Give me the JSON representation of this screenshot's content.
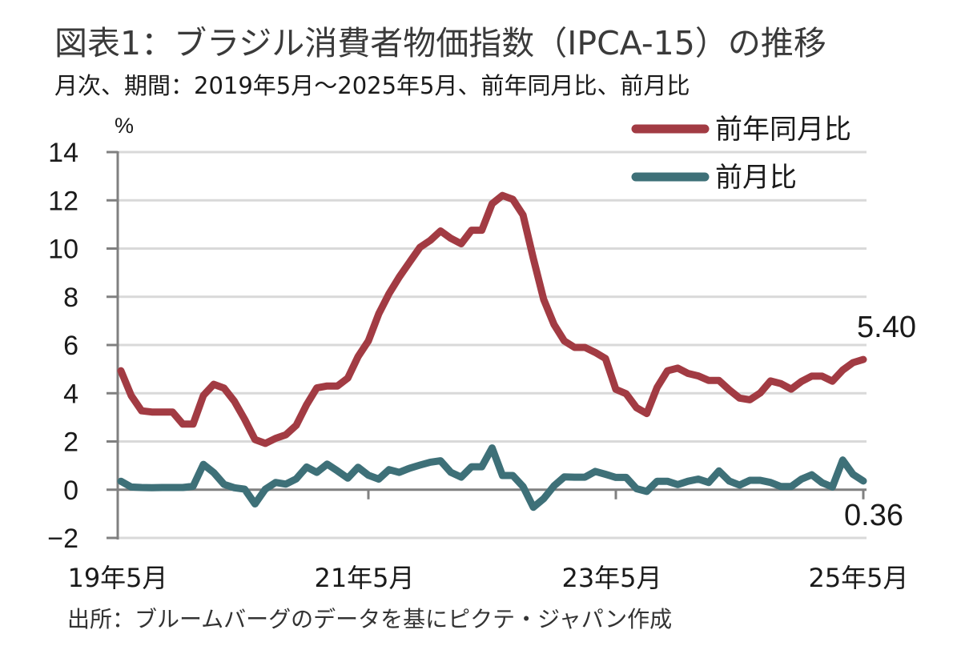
{
  "header": {
    "title": "図表1：ブラジル消費者物価指数（IPCA-15）の推移",
    "subtitle": "月次、期間：2019年5月～2025年5月、前年同月比、前月比"
  },
  "footer": {
    "source": "出所：ブルームバーグのデータを基にピクテ・ジャパン作成"
  },
  "chart_data": {
    "type": "line",
    "title": "図表1：ブラジル消費者物価指数（IPCA-15）の推移",
    "subtitle": "月次、期間：2019年5月～2025年5月、前年同月比、前月比",
    "xlabel": "",
    "ylabel": "%",
    "ylim": [
      -2,
      14
    ],
    "yticks": [
      14,
      12,
      10,
      8,
      6,
      4,
      2,
      0,
      -2
    ],
    "ytick_labels": [
      "14",
      "12",
      "10",
      "8",
      "6",
      "4",
      "2",
      "0",
      "−2"
    ],
    "xticks": [
      "19年5月",
      "21年5月",
      "23年5月",
      "25年5月"
    ],
    "xtick_index": [
      0,
      24,
      48,
      72
    ],
    "x_start": "2019-05",
    "x_end": "2025-05",
    "grid": true,
    "legend_position": "top-right",
    "series": [
      {
        "name": "前年同月比",
        "color": "#A23B43",
        "values": [
          4.93,
          3.9,
          3.27,
          3.22,
          3.22,
          3.22,
          2.72,
          2.72,
          3.91,
          4.37,
          4.21,
          3.67,
          2.92,
          2.08,
          1.92,
          2.13,
          2.28,
          2.67,
          3.52,
          4.22,
          4.3,
          4.3,
          4.63,
          5.52,
          6.17,
          7.29,
          8.13,
          8.82,
          9.44,
          10.05,
          10.34,
          10.73,
          10.42,
          10.2,
          10.76,
          10.76,
          11.86,
          12.2,
          12.04,
          11.39,
          9.59,
          7.89,
          6.85,
          6.17,
          5.9,
          5.9,
          5.69,
          5.44,
          4.16,
          3.98,
          3.4,
          3.16,
          4.24,
          4.93,
          5.04,
          4.82,
          4.72,
          4.53,
          4.53,
          4.14,
          3.8,
          3.73,
          4.01,
          4.51,
          4.4,
          4.17,
          4.49,
          4.71,
          4.71,
          4.5,
          4.96,
          5.27,
          5.4
        ]
      },
      {
        "name": "前月比",
        "color": "#3E7078",
        "values": [
          0.35,
          0.11,
          0.09,
          0.08,
          0.09,
          0.09,
          0.09,
          0.14,
          1.05,
          0.71,
          0.22,
          0.08,
          0.02,
          -0.59,
          0.02,
          0.3,
          0.23,
          0.45,
          0.94,
          0.72,
          1.06,
          0.78,
          0.48,
          0.93,
          0.6,
          0.44,
          0.83,
          0.72,
          0.89,
          1.02,
          1.14,
          1.2,
          0.72,
          0.52,
          0.95,
          0.95,
          1.73,
          0.59,
          0.59,
          0.13,
          -0.73,
          -0.37,
          0.16,
          0.53,
          0.52,
          0.52,
          0.76,
          0.64,
          0.51,
          0.51,
          0.04,
          -0.07,
          0.35,
          0.35,
          0.21,
          0.35,
          0.44,
          0.3,
          0.78,
          0.36,
          0.19,
          0.39,
          0.39,
          0.3,
          0.13,
          0.13,
          0.44,
          0.62,
          0.29,
          0.11,
          1.23,
          0.64,
          0.36
        ]
      }
    ],
    "annotations": [
      {
        "series": "前年同月比",
        "text": "5.40",
        "at": "2025-05"
      },
      {
        "series": "前月比",
        "text": "0.36",
        "at": "2025-05"
      }
    ]
  }
}
